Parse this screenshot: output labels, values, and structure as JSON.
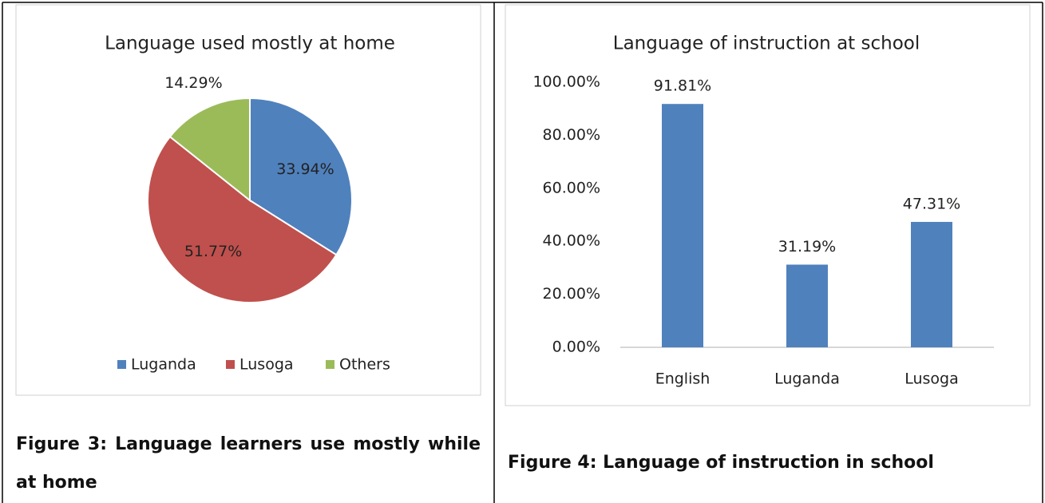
{
  "chart_data": [
    {
      "type": "pie",
      "title": "Language used mostly at home",
      "categories": [
        "Luganda",
        "Lusoga",
        "Others"
      ],
      "values": [
        33.94,
        51.77,
        14.29
      ],
      "value_labels": [
        "33.94%",
        "51.77%",
        "14.29%"
      ],
      "colors": [
        "#4f81bd",
        "#c0504d",
        "#9bbb59"
      ],
      "legend": "bottom"
    },
    {
      "type": "bar",
      "title": "Language of instruction at school",
      "categories": [
        "English",
        "Luganda",
        "Lusoga"
      ],
      "values": [
        91.81,
        31.19,
        47.31
      ],
      "value_labels": [
        "91.81%",
        "31.19%",
        "47.31%"
      ],
      "color": "#4f81bd",
      "ylim": [
        0,
        100
      ],
      "yticks": [
        {
          "value": 0,
          "label": "0.00%"
        },
        {
          "value": 20,
          "label": "20.00%"
        },
        {
          "value": 40,
          "label": "40.00%"
        },
        {
          "value": 60,
          "label": "60.00%"
        },
        {
          "value": 80,
          "label": "80.00%"
        },
        {
          "value": 100,
          "label": "100.00%"
        }
      ],
      "grid": false
    }
  ],
  "captions": [
    "Figure 3: Language learners use mostly while at home",
    "Figure 4: Language of instruction in school"
  ]
}
